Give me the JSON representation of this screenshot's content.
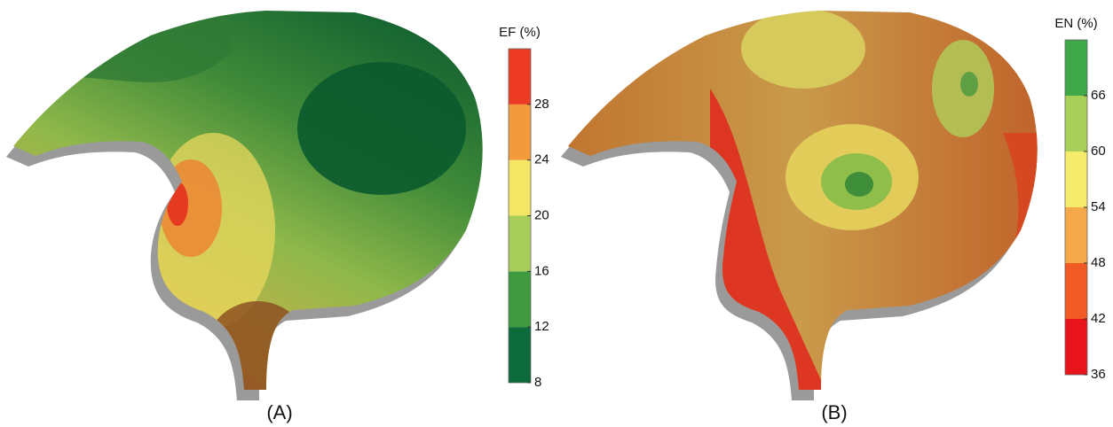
{
  "panels": [
    {
      "label": "(A)",
      "colorbar": {
        "title": "EF (%)",
        "lim": [
          8,
          32
        ],
        "ticks": [
          8,
          12,
          16,
          20,
          24,
          28
        ],
        "colors": [
          "#0b6b3a",
          "#3f9a3f",
          "#a8cc5a",
          "#f4e665",
          "#f29a3c",
          "#ec3b22"
        ]
      }
    },
    {
      "label": "(B)",
      "colorbar": {
        "title": "EN (%)",
        "lim": [
          36,
          72
        ],
        "ticks": [
          36,
          42,
          48,
          54,
          60,
          66
        ],
        "colors": [
          "#e8141c",
          "#f05a24",
          "#f4a84a",
          "#f4ec6a",
          "#a8cf5a",
          "#3fa94a"
        ]
      }
    }
  ]
}
